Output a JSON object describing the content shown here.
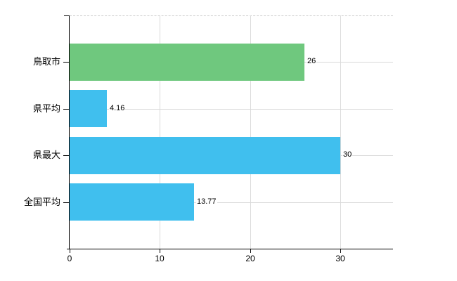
{
  "chart_data": {
    "type": "bar",
    "orientation": "horizontal",
    "title": "",
    "xlabel": "",
    "ylabel": "",
    "categories": [
      "鳥取市",
      "県平均",
      "県最大",
      "全国平均"
    ],
    "values": [
      26,
      4.16,
      30,
      13.77
    ],
    "value_labels": [
      "26",
      "4.16",
      "30",
      "13.77"
    ],
    "bar_colors": [
      "#6fc87e",
      "#40bfee",
      "#40bfee",
      "#40bfee"
    ],
    "x_ticks": [
      0,
      10,
      20,
      30
    ],
    "x_tick_labels": [
      "0",
      "10",
      "20",
      "30"
    ],
    "xlim": [
      0,
      35.8
    ],
    "grid": true,
    "legend": false,
    "colors": {
      "grid_line": "#d9d9d9",
      "top_boundary_line": "#c9c9c9",
      "axis_line": "#000000",
      "text": "#000000",
      "background": "#ffffff"
    }
  }
}
